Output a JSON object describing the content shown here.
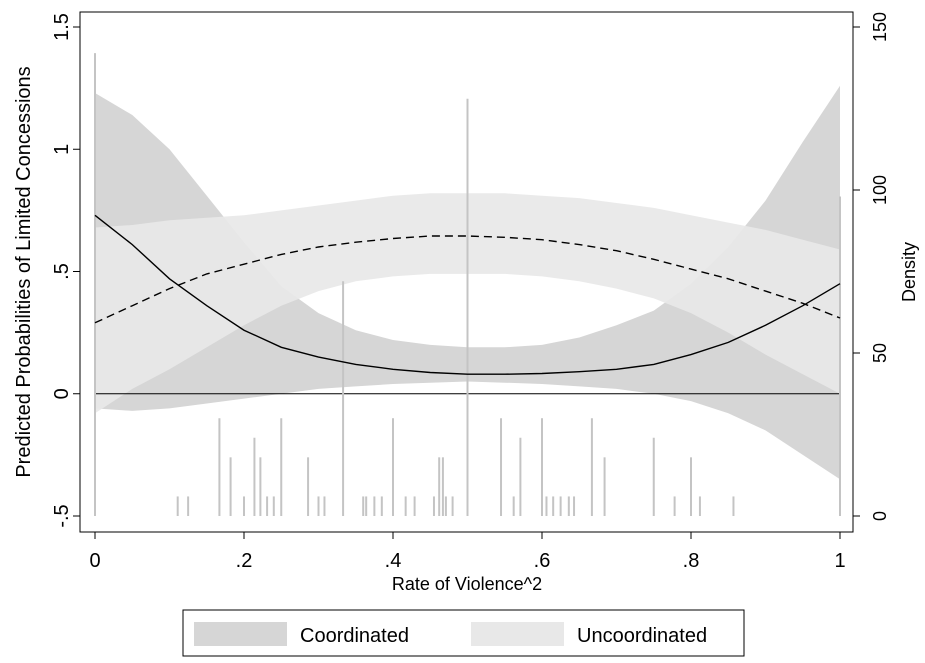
{
  "chart_data": {
    "type": "area",
    "xlabel": "Rate of Violence^2",
    "ylabel_left": "Predicted Probabilities of Limited Concessions",
    "ylabel_right": "Density",
    "xlim": [
      0,
      1
    ],
    "ylim_left": [
      -0.5,
      1.5
    ],
    "ylim_right": [
      0,
      150
    ],
    "x_ticks": [
      {
        "value": 0,
        "label": "0"
      },
      {
        "value": 0.2,
        "label": ".2"
      },
      {
        "value": 0.4,
        "label": ".4"
      },
      {
        "value": 0.6,
        "label": ".6"
      },
      {
        "value": 0.8,
        "label": ".8"
      },
      {
        "value": 1,
        "label": "1"
      }
    ],
    "y_left_ticks": [
      {
        "value": -0.5,
        "label": "-.5"
      },
      {
        "value": 0,
        "label": "0"
      },
      {
        "value": 0.5,
        "label": ".5"
      },
      {
        "value": 1,
        "label": "1"
      },
      {
        "value": 1.5,
        "label": "1.5"
      }
    ],
    "y_right_ticks": [
      {
        "value": 0,
        "label": "0"
      },
      {
        "value": 50,
        "label": "50"
      },
      {
        "value": 100,
        "label": "100"
      },
      {
        "value": 150,
        "label": "150"
      }
    ],
    "legend": {
      "position": "bottom",
      "entries": [
        {
          "label": "Coordinated",
          "color": "#d6d6d6"
        },
        {
          "label": "Uncoordinated",
          "color": "#e8e8e8"
        }
      ]
    },
    "colors": {
      "coordinated_band": "#d6d6d6",
      "uncoordinated_band": "#e8e8e8",
      "spikes": "#c4c4c4",
      "lines": "#000000"
    },
    "coordinated": {
      "line_style": "solid",
      "x": [
        0,
        0.05,
        0.1,
        0.15,
        0.2,
        0.25,
        0.3,
        0.35,
        0.4,
        0.45,
        0.5,
        0.55,
        0.6,
        0.65,
        0.7,
        0.75,
        0.8,
        0.85,
        0.9,
        0.95,
        1
      ],
      "estimate": [
        0.73,
        0.61,
        0.47,
        0.36,
        0.26,
        0.19,
        0.15,
        0.12,
        0.1,
        0.087,
        0.08,
        0.08,
        0.083,
        0.09,
        0.1,
        0.12,
        0.16,
        0.21,
        0.28,
        0.36,
        0.45
      ],
      "lower": [
        -0.06,
        -0.07,
        -0.06,
        -0.04,
        -0.02,
        0.0,
        0.02,
        0.03,
        0.04,
        0.045,
        0.05,
        0.045,
        0.04,
        0.03,
        0.02,
        0.0,
        -0.03,
        -0.08,
        -0.15,
        -0.25,
        -0.35
      ],
      "upper": [
        1.23,
        1.14,
        1.0,
        0.81,
        0.62,
        0.44,
        0.33,
        0.26,
        0.22,
        0.2,
        0.19,
        0.19,
        0.2,
        0.23,
        0.28,
        0.34,
        0.45,
        0.6,
        0.79,
        1.03,
        1.26
      ]
    },
    "uncoordinated": {
      "line_style": "dashed",
      "x": [
        0,
        0.05,
        0.1,
        0.15,
        0.2,
        0.25,
        0.3,
        0.35,
        0.4,
        0.45,
        0.5,
        0.55,
        0.6,
        0.65,
        0.7,
        0.75,
        0.8,
        0.85,
        0.9,
        0.95,
        1
      ],
      "estimate": [
        0.29,
        0.36,
        0.43,
        0.49,
        0.53,
        0.57,
        0.6,
        0.62,
        0.635,
        0.645,
        0.645,
        0.64,
        0.63,
        0.61,
        0.585,
        0.55,
        0.51,
        0.47,
        0.42,
        0.37,
        0.31
      ],
      "lower": [
        -0.08,
        0.02,
        0.1,
        0.19,
        0.28,
        0.36,
        0.42,
        0.46,
        0.48,
        0.49,
        0.49,
        0.49,
        0.48,
        0.46,
        0.43,
        0.39,
        0.33,
        0.25,
        0.16,
        0.08,
        0.0
      ],
      "upper": [
        0.68,
        0.69,
        0.71,
        0.72,
        0.73,
        0.75,
        0.77,
        0.79,
        0.81,
        0.82,
        0.82,
        0.82,
        0.81,
        0.8,
        0.78,
        0.76,
        0.73,
        0.7,
        0.67,
        0.63,
        0.59
      ]
    },
    "density_spikes": {
      "x": [
        0,
        0.111,
        0.125,
        0.167,
        0.182,
        0.2,
        0.214,
        0.222,
        0.231,
        0.24,
        0.25,
        0.286,
        0.3,
        0.308,
        0.333,
        0.36,
        0.364,
        0.375,
        0.385,
        0.4,
        0.417,
        0.429,
        0.455,
        0.462,
        0.467,
        0.471,
        0.48,
        0.5,
        0.545,
        0.562,
        0.571,
        0.6,
        0.606,
        0.615,
        0.625,
        0.636,
        0.643,
        0.667,
        0.684,
        0.75,
        0.778,
        0.8,
        0.812,
        0.857,
        1
      ],
      "density": [
        142,
        6,
        6,
        30,
        18,
        6,
        24,
        18,
        6,
        6,
        30,
        18,
        6,
        6,
        72,
        6,
        6,
        6,
        6,
        30,
        6,
        6,
        6,
        18,
        18,
        6,
        6,
        128,
        30,
        6,
        24,
        30,
        6,
        6,
        6,
        6,
        6,
        30,
        18,
        24,
        6,
        18,
        6,
        6,
        98
      ]
    }
  }
}
